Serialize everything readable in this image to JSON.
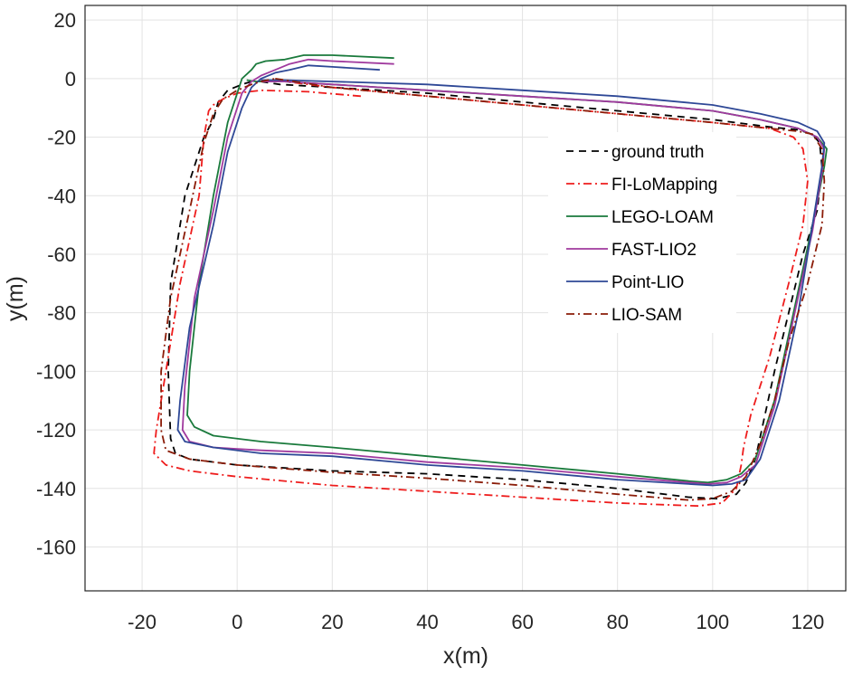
{
  "chart_data": {
    "type": "line",
    "title": "",
    "xlabel": "x(m)",
    "ylabel": "y(m)",
    "xlim": [
      -32,
      128
    ],
    "ylim": [
      -175,
      25
    ],
    "xticks": [
      -20,
      0,
      20,
      40,
      60,
      80,
      100,
      120
    ],
    "yticks": [
      20,
      0,
      -20,
      -40,
      -60,
      -80,
      -100,
      -120,
      -140,
      -160
    ],
    "grid": true,
    "legend_position": "right-middle",
    "series": [
      {
        "name": "ground truth",
        "color": "#000000",
        "dash": "8,6",
        "x": [
          5,
          9,
          20,
          40,
          60,
          80,
          100,
          112,
          118,
          121,
          122.5,
          123,
          122,
          119,
          116,
          113,
          111,
          109,
          107,
          105,
          101,
          95,
          80,
          60,
          40,
          20,
          0,
          -10,
          -13,
          -14,
          -14.5,
          -14,
          -11,
          -7,
          -5,
          -4,
          -2,
          1,
          3,
          5
        ],
        "y": [
          -1,
          -2,
          -3,
          -5,
          -8,
          -11,
          -14,
          -16.5,
          -17.5,
          -19,
          -22,
          -30,
          -45,
          -60,
          -80,
          -100,
          -115,
          -130,
          -138,
          -142,
          -143.5,
          -143,
          -140,
          -137,
          -135,
          -134,
          -132,
          -130,
          -128,
          -123,
          -100,
          -70,
          -40,
          -20,
          -14,
          -8,
          -4,
          -2,
          -1,
          -1
        ]
      },
      {
        "name": "FI-LoMapping",
        "color": "#ee1c1c",
        "dash": "9,4,2,4",
        "x": [
          26,
          15,
          5,
          0,
          -3,
          -5,
          -6,
          -7,
          -8,
          -12,
          -15,
          -17,
          -17.5,
          -15,
          -10,
          0,
          20,
          40,
          60,
          80,
          97,
          102,
          105,
          106,
          106.5,
          108,
          112,
          116,
          119,
          120,
          119,
          117,
          112,
          100,
          80,
          60,
          40,
          20,
          10
        ],
        "y": [
          -6,
          -4.5,
          -4,
          -5,
          -7,
          -9,
          -11,
          -20,
          -40,
          -70,
          -100,
          -120,
          -128,
          -132,
          -134,
          -136,
          -139,
          -141,
          -143,
          -145,
          -146,
          -145,
          -140,
          -132,
          -126,
          -115,
          -95,
          -70,
          -50,
          -35,
          -24,
          -20,
          -17,
          -15,
          -12,
          -9,
          -6,
          -3,
          -1
        ]
      },
      {
        "name": "LEGO-LOAM",
        "color": "#1a7a3c",
        "dash": "",
        "x": [
          33,
          20,
          14,
          10,
          6,
          4,
          3,
          1,
          -2,
          -5,
          -8,
          -10,
          -10.5,
          -9,
          -5,
          5,
          20,
          40,
          60,
          80,
          95,
          99,
          103,
          106,
          109,
          113,
          117,
          121,
          123.5,
          124,
          122,
          118,
          110,
          100,
          80,
          60,
          40,
          20,
          10,
          4,
          2
        ],
        "y": [
          7,
          8,
          8,
          6.5,
          6,
          5,
          3,
          0,
          -15,
          -40,
          -70,
          -100,
          -115,
          -119,
          -122,
          -124,
          -126,
          -129,
          -132,
          -135,
          -137.5,
          -138,
          -137,
          -135,
          -130,
          -110,
          -80,
          -50,
          -30,
          -24,
          -20,
          -17,
          -14,
          -11,
          -8,
          -6,
          -4,
          -2,
          -1,
          -1,
          -0.5
        ]
      },
      {
        "name": "FAST-LIO2",
        "color": "#a03a9e",
        "dash": "",
        "x": [
          33,
          20,
          15,
          11,
          8,
          5,
          3,
          1,
          -2,
          -5,
          -9,
          -11,
          -11.5,
          -10,
          -5,
          5,
          20,
          40,
          60,
          80,
          95,
          99,
          103,
          106,
          109,
          113,
          117,
          121,
          123,
          123.5,
          122,
          118,
          110,
          100,
          80,
          60,
          40,
          20,
          10,
          5
        ],
        "y": [
          5,
          6,
          6.5,
          5,
          3,
          1,
          -1,
          -5,
          -20,
          -45,
          -75,
          -105,
          -120,
          -124,
          -126,
          -127,
          -128,
          -131,
          -133,
          -136,
          -138,
          -138.5,
          -138,
          -136,
          -132,
          -112,
          -82,
          -52,
          -32,
          -24,
          -20,
          -17,
          -14,
          -11,
          -8,
          -6,
          -4,
          -2,
          -1,
          -1
        ]
      },
      {
        "name": "Point-LIO",
        "color": "#2e4896",
        "dash": "",
        "x": [
          30,
          20,
          15,
          11,
          8,
          5,
          3,
          1,
          -2,
          -5,
          -10,
          -12,
          -12.5,
          -11,
          -5,
          5,
          20,
          40,
          60,
          80,
          95,
          100,
          104,
          107,
          110,
          114,
          118,
          121,
          123,
          123.5,
          122,
          118,
          110,
          100,
          80,
          60,
          40,
          20,
          10,
          5
        ],
        "y": [
          3,
          4,
          4.5,
          3,
          2,
          0,
          -3,
          -10,
          -25,
          -50,
          -85,
          -110,
          -120,
          -124,
          -126,
          -128,
          -129,
          -132,
          -134,
          -137,
          -138.5,
          -139,
          -138.5,
          -137,
          -130,
          -110,
          -80,
          -50,
          -30,
          -22,
          -18,
          -15,
          -12,
          -9,
          -6,
          -4,
          -2,
          -1,
          -0.5,
          -0.5
        ]
      },
      {
        "name": "LIO-SAM",
        "color": "#8b1c08",
        "dash": "9,4,2,4",
        "x": [
          8,
          12,
          20,
          40,
          60,
          80,
          100,
          112,
          118,
          121,
          123,
          123.5,
          123,
          120,
          116,
          113,
          110,
          107,
          104,
          100,
          95,
          80,
          60,
          40,
          20,
          0,
          -10,
          -15,
          -16,
          -16,
          -14,
          -10,
          -7,
          -5,
          -3,
          0,
          3,
          5,
          8
        ],
        "y": [
          0,
          -1,
          -3,
          -6,
          -9,
          -12,
          -15,
          -17,
          -18,
          -19,
          -24,
          -35,
          -50,
          -70,
          -90,
          -110,
          -125,
          -136,
          -141,
          -143.5,
          -144,
          -142,
          -139,
          -136.5,
          -134.5,
          -132,
          -130,
          -127,
          -120,
          -100,
          -75,
          -45,
          -22,
          -12,
          -7,
          -4,
          -2,
          -1,
          0
        ]
      }
    ]
  }
}
